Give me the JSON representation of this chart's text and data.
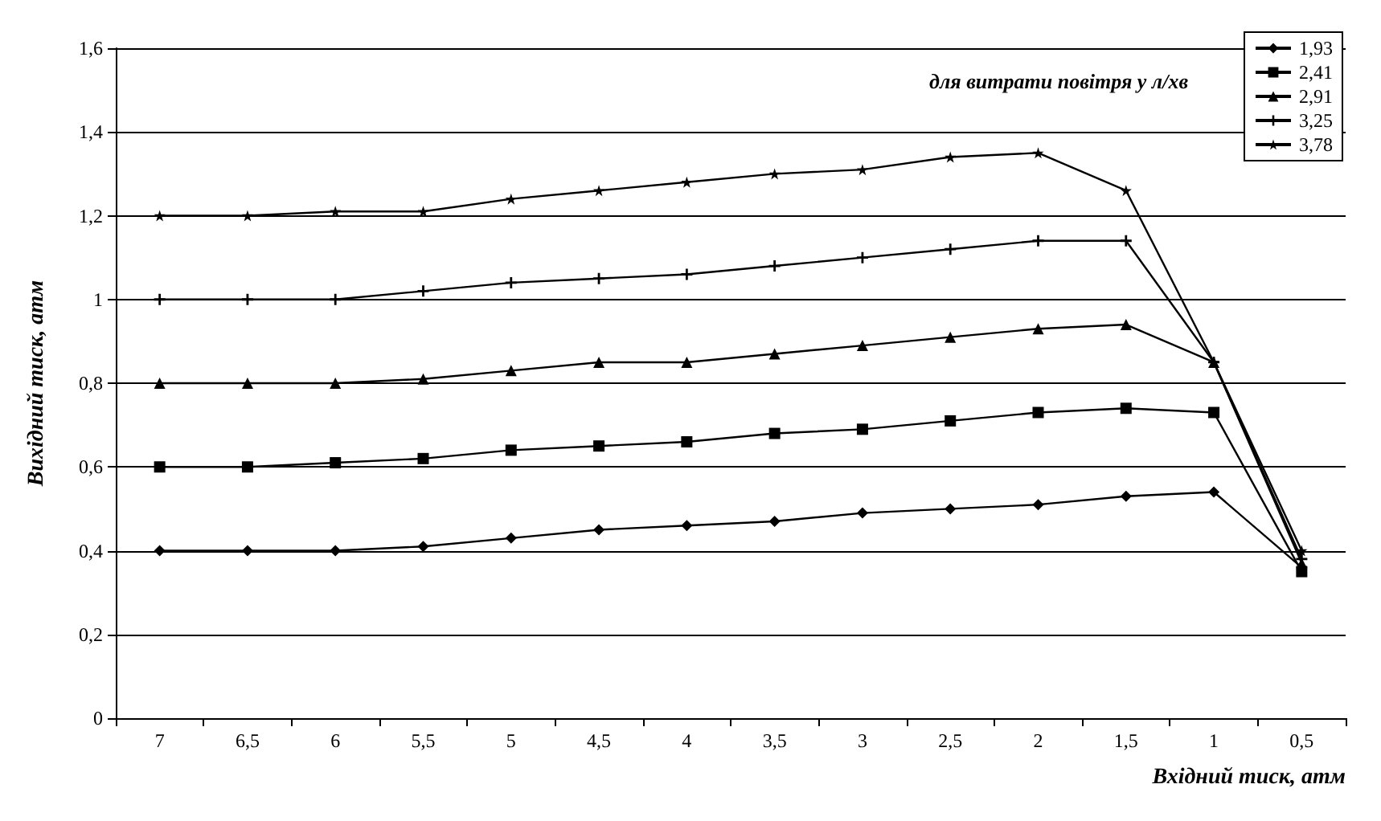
{
  "chart_data": {
    "type": "line",
    "xlabel": "Вхідний тиск, атм",
    "ylabel": "Вихідний тиск, атм",
    "legend_title": "для витрати повітря у л/хв",
    "legend": "top right",
    "grid": "y",
    "line_style": "solid",
    "categories": [
      "7",
      "6,5",
      "6",
      "5,5",
      "5",
      "4,5",
      "4",
      "3,5",
      "3",
      "2,5",
      "2",
      "1,5",
      "1",
      "0,5"
    ],
    "ylim": [
      0,
      1.6
    ],
    "yticks": [
      0,
      {
        "value": 0.2,
        "label": "0,2"
      },
      {
        "value": 0.4,
        "label": "0,4"
      },
      {
        "value": 0.6,
        "label": "0,6"
      },
      {
        "value": 0.8,
        "label": "0,8"
      },
      1,
      {
        "value": 1.2,
        "label": "1,2"
      },
      {
        "value": 1.4,
        "label": "1,4"
      },
      {
        "value": 1.6,
        "label": "1,6"
      }
    ],
    "series": [
      {
        "name": "1,93",
        "color": "#000000",
        "marker": "diamond",
        "values": [
          0.4,
          0.4,
          0.4,
          0.41,
          0.43,
          0.45,
          0.46,
          0.47,
          0.49,
          0.5,
          0.51,
          0.53,
          0.54,
          0.36
        ]
      },
      {
        "name": "2,41",
        "color": "#000000",
        "marker": "square",
        "values": [
          0.6,
          0.6,
          0.61,
          0.62,
          0.64,
          0.65,
          0.66,
          0.68,
          0.69,
          0.71,
          0.73,
          0.74,
          0.73,
          0.35
        ]
      },
      {
        "name": "2,91",
        "color": "#000000",
        "marker": "triangle",
        "values": [
          0.8,
          0.8,
          0.8,
          0.81,
          0.83,
          0.85,
          0.85,
          0.87,
          0.89,
          0.91,
          0.93,
          0.94,
          0.85,
          0.37
        ]
      },
      {
        "name": "3,25",
        "color": "#000000",
        "marker": "cross",
        "values": [
          1.0,
          1.0,
          1.0,
          1.02,
          1.04,
          1.05,
          1.06,
          1.08,
          1.1,
          1.12,
          1.14,
          1.14,
          0.85,
          0.38
        ]
      },
      {
        "name": "3,78",
        "color": "#000000",
        "marker": "star",
        "values": [
          1.2,
          1.2,
          1.21,
          1.21,
          1.24,
          1.26,
          1.28,
          1.3,
          1.31,
          1.34,
          1.35,
          1.26,
          0.85,
          0.4
        ]
      }
    ]
  }
}
